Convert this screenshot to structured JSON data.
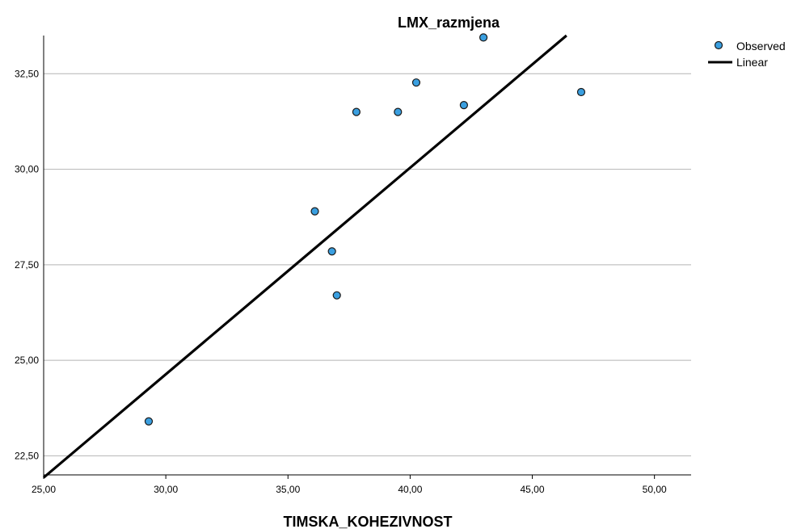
{
  "chart_data": {
    "type": "scatter",
    "title": "LMX_razmjena",
    "xlabel": "TIMSKA_KOHEZIVNOST",
    "ylabel": "",
    "xlim": [
      25,
      51.5
    ],
    "ylim": [
      22,
      33.5
    ],
    "x_ticks": [
      "25,00",
      "30,00",
      "35,00",
      "40,00",
      "45,00",
      "50,00"
    ],
    "x_tick_values": [
      25,
      30,
      35,
      40,
      45,
      50
    ],
    "y_ticks": [
      "22,50",
      "25,00",
      "27,50",
      "30,00",
      "32,50"
    ],
    "y_tick_values": [
      22.5,
      25,
      27.5,
      30,
      32.5
    ],
    "grid": "horizontal",
    "legend_position": "top-right",
    "series": [
      {
        "name": "Observed",
        "kind": "points",
        "color": "#3a9fe0",
        "points": [
          {
            "x": 29.3,
            "y": 23.4
          },
          {
            "x": 36.1,
            "y": 28.9
          },
          {
            "x": 36.8,
            "y": 27.85
          },
          {
            "x": 37.0,
            "y": 26.7
          },
          {
            "x": 37.8,
            "y": 31.5
          },
          {
            "x": 39.5,
            "y": 31.5
          },
          {
            "x": 40.25,
            "y": 32.27
          },
          {
            "x": 42.2,
            "y": 31.68
          },
          {
            "x": 43.0,
            "y": 33.45
          },
          {
            "x": 47.0,
            "y": 32.02
          }
        ]
      },
      {
        "name": "Linear",
        "kind": "line",
        "color": "#000000",
        "points": [
          {
            "x": 25.0,
            "y": 21.93
          },
          {
            "x": 46.4,
            "y": 33.5
          }
        ]
      }
    ]
  }
}
